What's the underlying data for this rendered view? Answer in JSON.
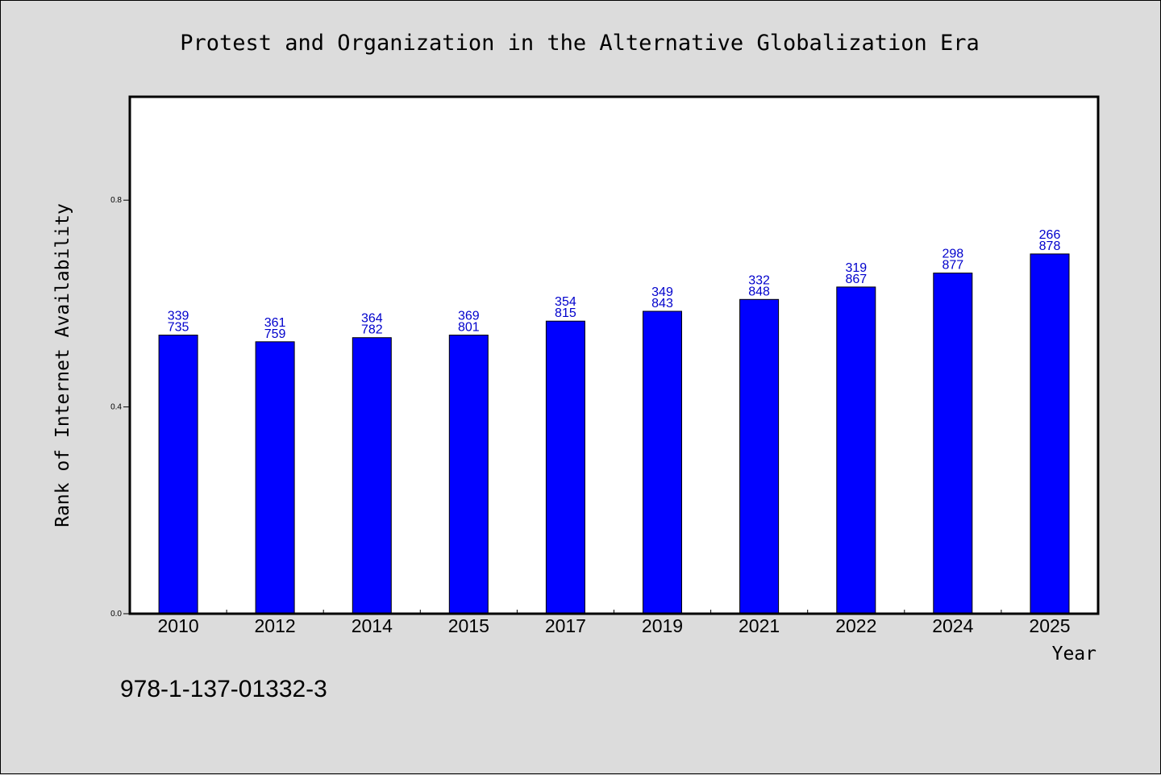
{
  "chart_data": {
    "type": "bar",
    "title": "Protest and Organization in the Alternative Globalization Era",
    "xlabel": "Year",
    "ylabel": "Rank of Internet Availability",
    "categories": [
      "2010",
      "2012",
      "2014",
      "2015",
      "2017",
      "2019",
      "2021",
      "2022",
      "2024",
      "2025"
    ],
    "values": [
      0.539,
      0.526,
      0.534,
      0.539,
      0.566,
      0.585,
      0.608,
      0.632,
      0.659,
      0.696
    ],
    "bar_labels": [
      [
        "339",
        "735"
      ],
      [
        "361",
        "759"
      ],
      [
        "364",
        "782"
      ],
      [
        "369",
        "801"
      ],
      [
        "354",
        "815"
      ],
      [
        "349",
        "843"
      ],
      [
        "332",
        "848"
      ],
      [
        "319",
        "867"
      ],
      [
        "298",
        "877"
      ],
      [
        "266",
        "878"
      ]
    ],
    "yticks": [
      {
        "value": 0.0,
        "label": "0.0"
      },
      {
        "value": 0.4,
        "label": "0.4"
      },
      {
        "value": 0.8,
        "label": "0.8"
      }
    ],
    "ylim": [
      0,
      1.0
    ],
    "bar_color": "#0000ff",
    "label_color": "#0000cc",
    "grid": false,
    "legend": false
  },
  "footnote": "978-1-137-01332-3"
}
